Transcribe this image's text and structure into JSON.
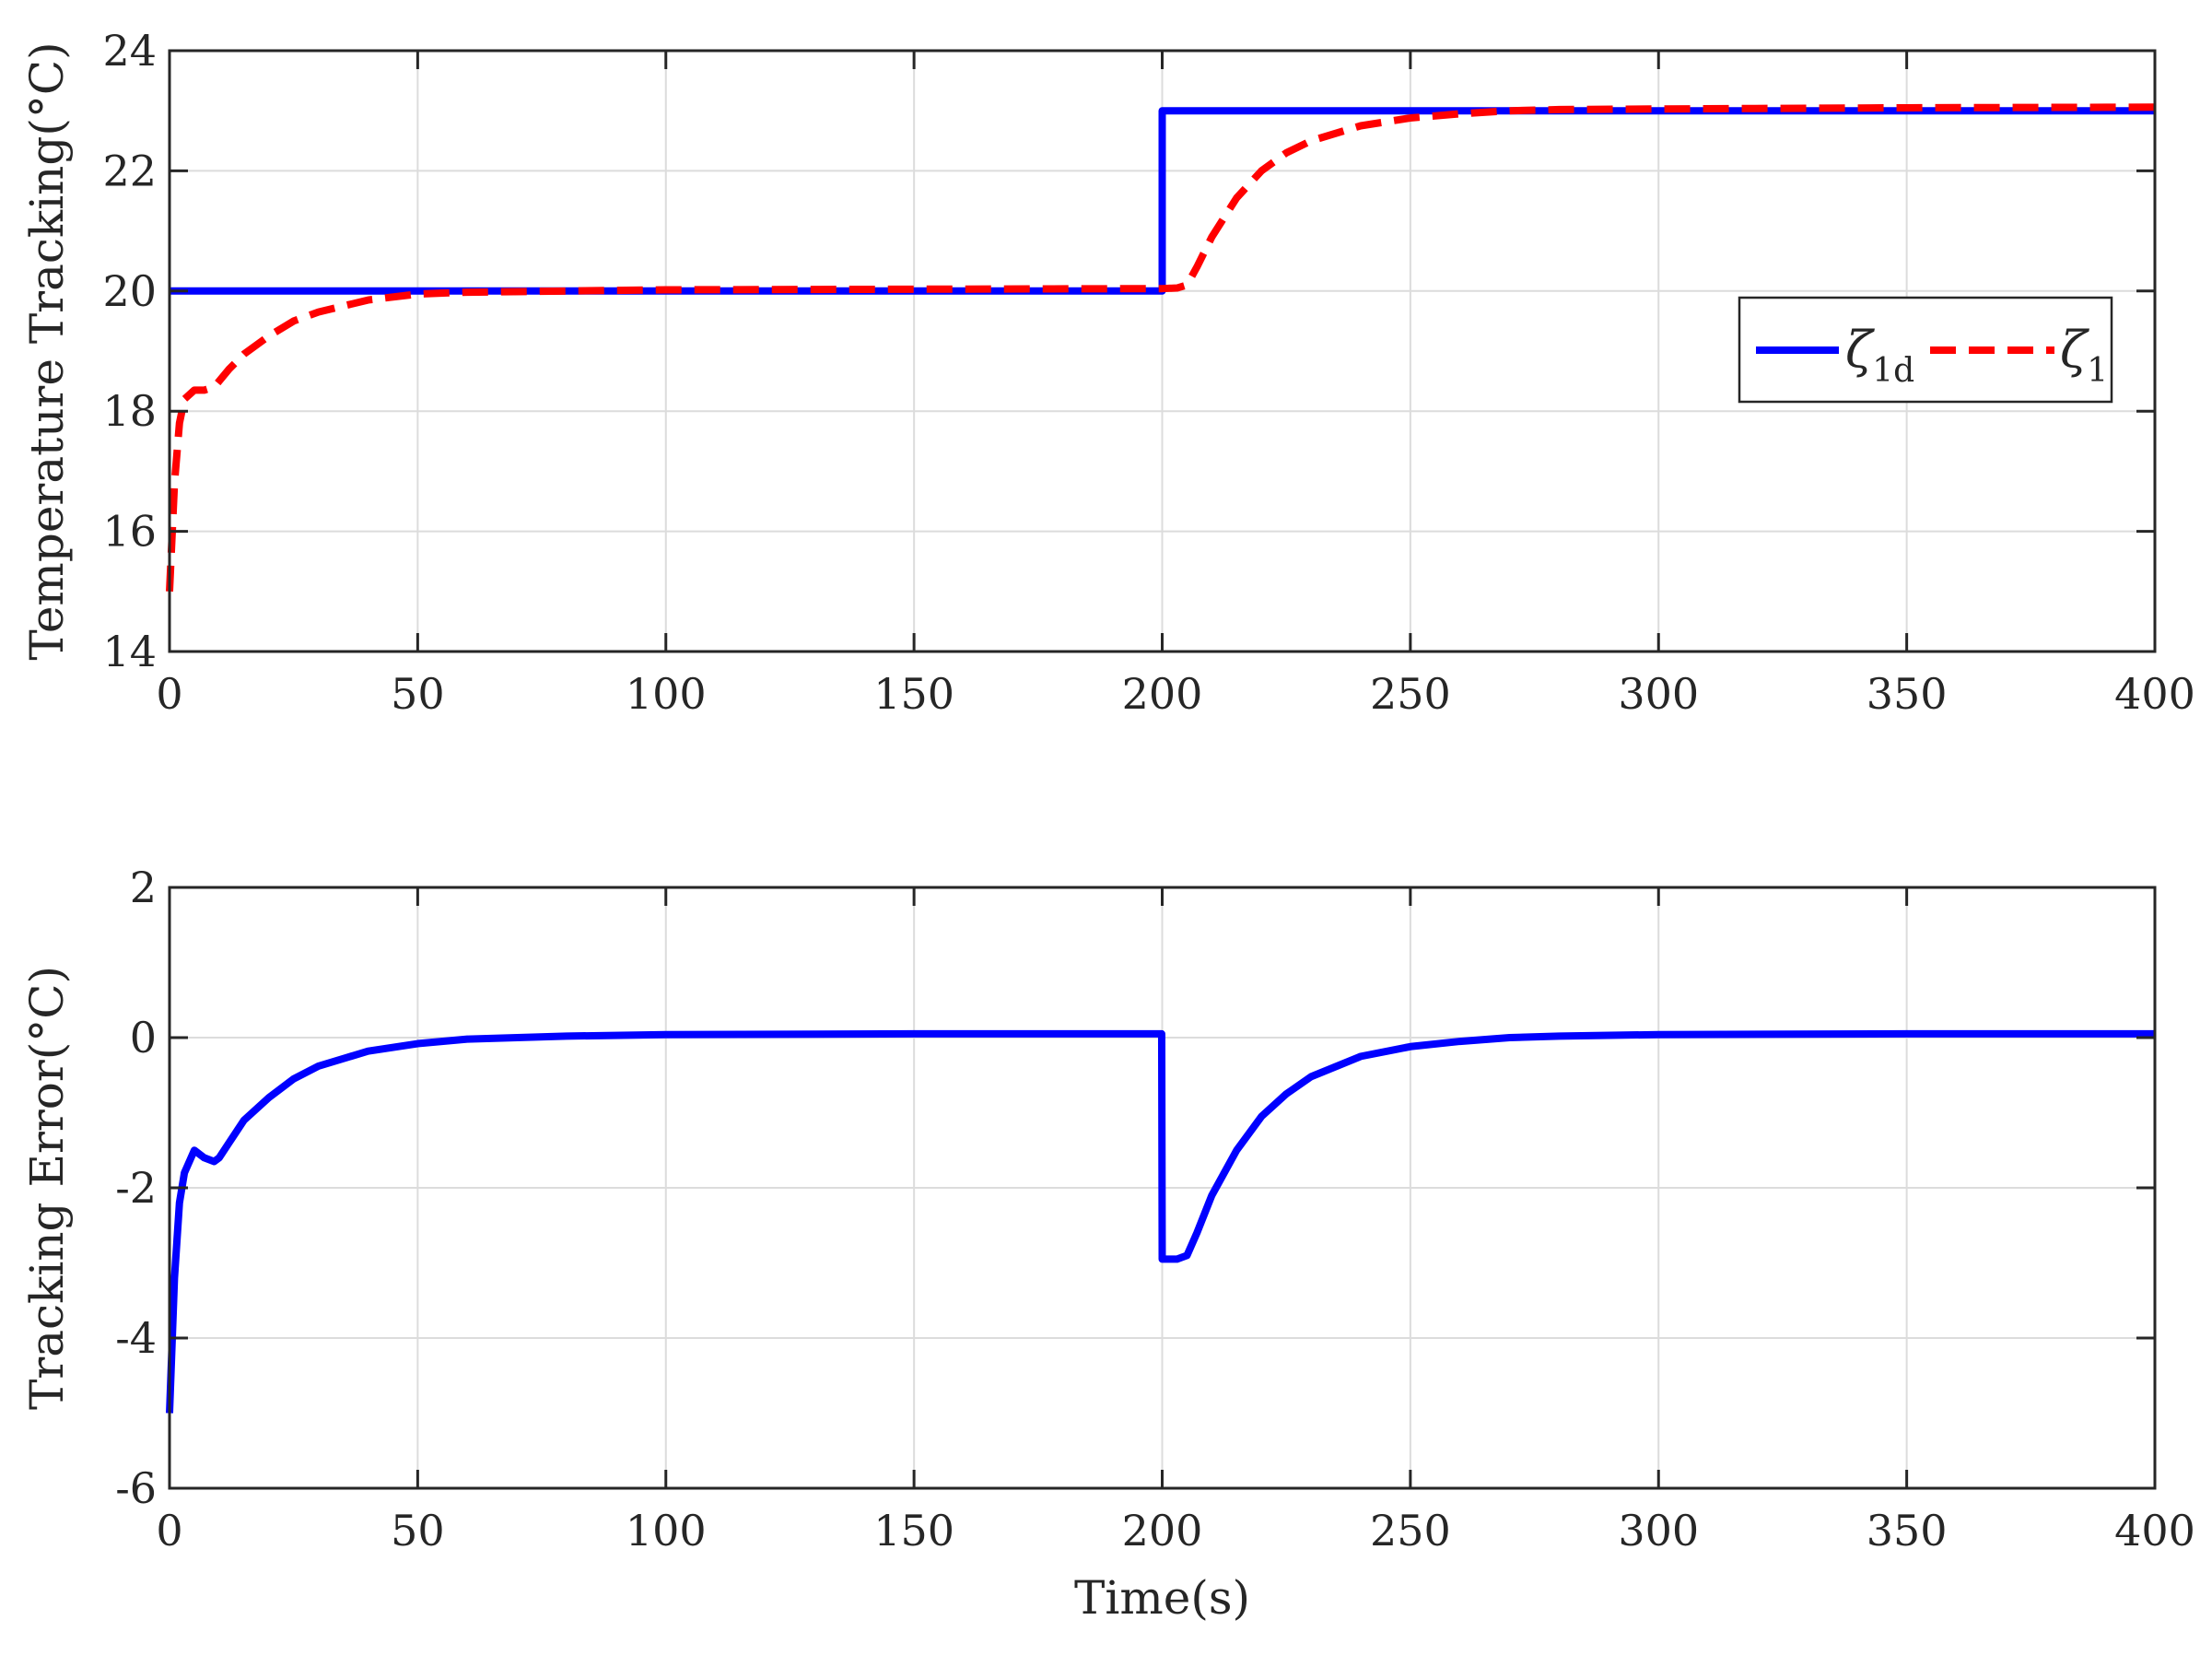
{
  "chart_data": [
    {
      "type": "line",
      "ylabel": "Temperature Tracking(°C)",
      "xlabel": "",
      "xlim": [
        0,
        400
      ],
      "ylim": [
        14,
        24
      ],
      "xticks": [
        0,
        50,
        100,
        150,
        200,
        250,
        300,
        350,
        400
      ],
      "xtick_labels": [
        "0",
        "50",
        "100",
        "150",
        "200",
        "250",
        "300",
        "350",
        "400"
      ],
      "yticks": [
        14,
        16,
        18,
        20,
        22,
        24
      ],
      "ytick_labels": [
        "14",
        "16",
        "18",
        "20",
        "22",
        "24"
      ],
      "grid": true,
      "legend": {
        "placement": "right",
        "entries": [
          {
            "symbol": "ζ",
            "sub": "1d"
          },
          {
            "symbol": "ζ",
            "sub": "1"
          }
        ]
      },
      "series": [
        {
          "style": "solid",
          "color": "#0000ff",
          "x": [
            0,
            200,
            200,
            400
          ],
          "y": [
            20,
            20,
            23,
            23
          ]
        },
        {
          "style": "dashed",
          "color": "#ff0000",
          "x": [
            0,
            1,
            2,
            3,
            5,
            7,
            9,
            10,
            12,
            15,
            20,
            25,
            30,
            40,
            50,
            60,
            80,
            100,
            150,
            200,
            203,
            205,
            207,
            210,
            215,
            220,
            225,
            230,
            240,
            250,
            260,
            270,
            280,
            300,
            350,
            400
          ],
          "y": [
            15.0,
            16.8,
            17.8,
            18.2,
            18.35,
            18.35,
            18.4,
            18.5,
            18.7,
            18.95,
            19.25,
            19.5,
            19.65,
            19.85,
            19.95,
            19.98,
            20.0,
            20.02,
            20.03,
            20.04,
            20.05,
            20.1,
            20.4,
            20.9,
            21.55,
            22.0,
            22.3,
            22.5,
            22.75,
            22.88,
            22.95,
            23.0,
            23.02,
            23.03,
            23.05,
            23.06
          ]
        }
      ]
    },
    {
      "type": "line",
      "ylabel": "Tracking Error(°C)",
      "xlabel": "Time(s)",
      "xlim": [
        0,
        400
      ],
      "ylim": [
        -6,
        2
      ],
      "xticks": [
        0,
        50,
        100,
        150,
        200,
        250,
        300,
        350,
        400
      ],
      "xtick_labels": [
        "0",
        "50",
        "100",
        "150",
        "200",
        "250",
        "300",
        "350",
        "400"
      ],
      "yticks": [
        -6,
        -4,
        -2,
        0,
        2
      ],
      "ytick_labels": [
        "-6",
        "-4",
        "-2",
        "0",
        "2"
      ],
      "grid": true,
      "series": [
        {
          "style": "solid",
          "color": "#0000ff",
          "x": [
            0,
            1,
            2,
            3,
            5,
            7,
            9,
            10,
            12,
            15,
            20,
            25,
            30,
            40,
            50,
            60,
            80,
            100,
            150,
            199.9,
            200,
            203,
            205,
            207,
            210,
            215,
            220,
            225,
            230,
            240,
            250,
            260,
            270,
            280,
            300,
            350,
            400
          ],
          "y": [
            -5.0,
            -3.2,
            -2.2,
            -1.8,
            -1.5,
            -1.6,
            -1.65,
            -1.6,
            -1.4,
            -1.1,
            -0.8,
            -0.55,
            -0.38,
            -0.18,
            -0.08,
            -0.02,
            0.02,
            0.04,
            0.05,
            0.05,
            -2.95,
            -2.95,
            -2.9,
            -2.6,
            -2.1,
            -1.5,
            -1.05,
            -0.75,
            -0.52,
            -0.25,
            -0.12,
            -0.05,
            0.0,
            0.02,
            0.04,
            0.05,
            0.05
          ]
        }
      ]
    }
  ]
}
